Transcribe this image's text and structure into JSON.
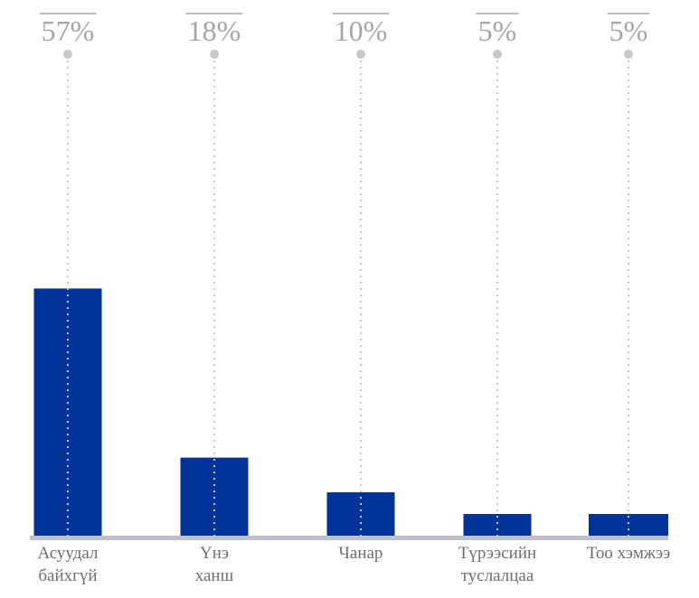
{
  "chart_data": {
    "type": "bar",
    "title": "",
    "xlabel": "",
    "ylabel": "",
    "ylim": [
      0,
      100
    ],
    "bar_color": "#003399",
    "axis_color": "#c0c0c8",
    "guide_color": "#c8c8c8",
    "label_color": "#a6a6a6",
    "categories": [
      [
        "Асуудал",
        "байхгүй"
      ],
      [
        "Үнэ",
        "ханш"
      ],
      [
        "Чанар"
      ],
      [
        "Түрээсийн",
        "туслалцаа"
      ],
      [
        "Тоо хэмжээ"
      ]
    ],
    "values": [
      57,
      18,
      10,
      5,
      5
    ],
    "value_labels": [
      "57%",
      "18%",
      "10%",
      "5%",
      "5%"
    ]
  }
}
